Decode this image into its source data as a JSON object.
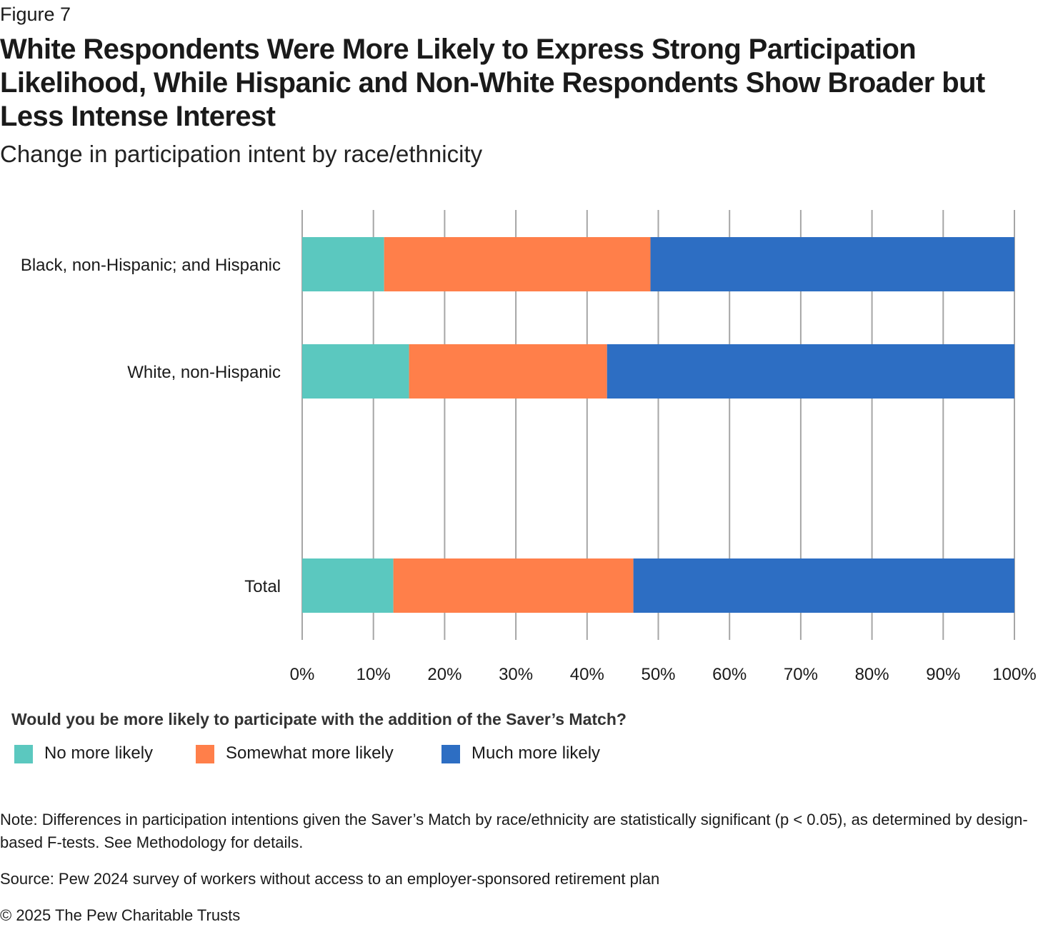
{
  "figure_label": "Figure 7",
  "title": "White Respondents Were More Likely to Express Strong Participation Likelihood, While Hispanic and Non-White Respondents Show Broader but Less Intense Interest",
  "subtitle": "Change in participation intent by race/ethnicity",
  "legend": {
    "title": "Would you be more likely to participate with the addition of the Saver’s Match?",
    "items": [
      {
        "label": "No more likely",
        "color": "#5bc8bf"
      },
      {
        "label": "Somewhat more likely",
        "color": "#ff7f4a"
      },
      {
        "label": "Much more likely",
        "color": "#2d6ec3"
      }
    ]
  },
  "note": "Note: Differences in participation intentions given the Saver’s Match by race/ethnicity are statistically significant (p < 0.05), as determined by design-based F-tests. See Methodology for details.",
  "source": "Source: Pew 2024 survey of workers without access to an employer-sponsored retirement plan",
  "copyright": "© 2025 The Pew Charitable Trusts",
  "chart_data": {
    "type": "bar",
    "orientation": "horizontal",
    "stacked": true,
    "percent": true,
    "categories": [
      "Black, non-Hispanic; and Hispanic",
      "White, non-Hispanic",
      "Total"
    ],
    "category_slots": [
      0,
      1,
      3
    ],
    "series": [
      {
        "name": "No more likely",
        "color": "#5bc8bf",
        "values": [
          11.5,
          15,
          12.8
        ]
      },
      {
        "name": "Somewhat more likely",
        "color": "#ff7f4a",
        "values": [
          37.4,
          27.8,
          33.7
        ]
      },
      {
        "name": "Much more likely",
        "color": "#2d6ec3",
        "values": [
          51.1,
          57.2,
          53.5
        ]
      }
    ],
    "xlim": [
      0,
      100
    ],
    "xticks": [
      "0%",
      "10%",
      "20%",
      "30%",
      "40%",
      "50%",
      "60%",
      "70%",
      "80%",
      "90%",
      "100%"
    ],
    "grid": true,
    "legend_position": "bottom-left"
  }
}
